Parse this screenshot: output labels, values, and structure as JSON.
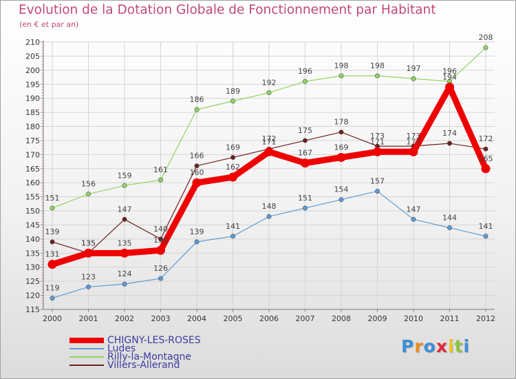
{
  "title": "Evolution de la Dotation Globale de Fonctionnement par Habitant",
  "subtitle": "(en € et par an)",
  "logo_text": "Proxiti",
  "chart_data": {
    "type": "line",
    "title": "Evolution de la Dotation Globale de Fonctionnement par Habitant",
    "ylabel": "(en € et par an)",
    "xlabel": "",
    "ylim": [
      115,
      210
    ],
    "yticks": [
      115,
      120,
      125,
      130,
      135,
      140,
      145,
      150,
      155,
      160,
      165,
      170,
      175,
      180,
      185,
      190,
      195,
      200,
      205,
      210
    ],
    "categories": [
      "2000",
      "2001",
      "2002",
      "2003",
      "2004",
      "2005",
      "2006",
      "2007",
      "2008",
      "2009",
      "2010",
      "2011",
      "2012"
    ],
    "series": [
      {
        "name": "CHIGNY-LES-ROSES",
        "color": "#ee0000",
        "values": [
          131,
          135,
          135,
          136,
          160,
          162,
          171,
          167,
          169,
          171,
          171,
          194,
          165
        ]
      },
      {
        "name": "Ludes",
        "color": "#5b9bd5",
        "values": [
          119,
          123,
          124,
          126,
          139,
          141,
          148,
          151,
          154,
          157,
          147,
          144,
          141
        ]
      },
      {
        "name": "Rilly-la-Montagne",
        "color": "#8fd460",
        "values": [
          151,
          156,
          159,
          161,
          186,
          189,
          192,
          196,
          198,
          198,
          197,
          196,
          208
        ]
      },
      {
        "name": "Villers-Allerand",
        "color": "#6e1f1f",
        "values": [
          139,
          135,
          147,
          140,
          166,
          169,
          172,
          175,
          178,
          173,
          173,
          174,
          172
        ]
      }
    ]
  }
}
